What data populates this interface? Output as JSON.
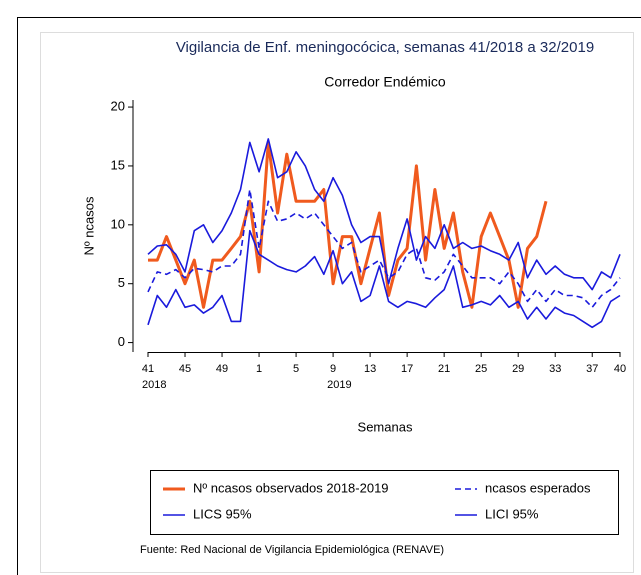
{
  "chart_data": {
    "type": "line",
    "title": "Vigilancia de Enf. meningocócica, semanas 41/2018 a 32/2019",
    "subtitle": "Corredor Endémico",
    "x_label": "Semanas",
    "y_label": "Nº ncasos",
    "source": "Fuente: Red Nacional de Vigilancia Epidemiológica (RENAVE)",
    "categories": [
      "41",
      null,
      null,
      null,
      "45",
      null,
      null,
      null,
      "49",
      null,
      null,
      null,
      "1",
      null,
      null,
      null,
      "5",
      null,
      null,
      null,
      "9",
      null,
      null,
      null,
      "13",
      null,
      null,
      null,
      "17",
      null,
      null,
      null,
      "21",
      null,
      null,
      null,
      "25",
      null,
      null,
      null,
      "29",
      null,
      null,
      null,
      "33",
      null,
      null,
      null,
      "37",
      null,
      null,
      "40"
    ],
    "year_labels": [
      {
        "index": 0,
        "text": "2018"
      },
      {
        "index": 20,
        "text": "2019"
      }
    ],
    "ylim": [
      -0.8,
      20.6
    ],
    "yticks": [
      0,
      5,
      10,
      15,
      20
    ],
    "series": [
      {
        "name": "Nº ncasos observados 2018-2019",
        "color": "#f05a1e",
        "style": "solid",
        "values": [
          7,
          7,
          9,
          7,
          5,
          7,
          3,
          7,
          7,
          8,
          9,
          12,
          6,
          17,
          11,
          16,
          12,
          12,
          12,
          13,
          5,
          9,
          9,
          5,
          8,
          11,
          4,
          7,
          8,
          15,
          7,
          13,
          8,
          11,
          6,
          3,
          9,
          11,
          9,
          7,
          3,
          8,
          9,
          12,
          null,
          null,
          null,
          null,
          null,
          null,
          null,
          null
        ]
      },
      {
        "name": "ncasos esperados",
        "color": "#1a1adc",
        "style": "dashed",
        "values": [
          4.3,
          6,
          5.8,
          6.2,
          5.5,
          6.3,
          6.2,
          6,
          6.5,
          6.5,
          7.5,
          13,
          8,
          12,
          10.3,
          10.5,
          11,
          10.5,
          11,
          10,
          9,
          8,
          8.5,
          6,
          6.5,
          7,
          5.5,
          6,
          7.5,
          8,
          5.5,
          5.3,
          6,
          7.5,
          6.5,
          5.5,
          5.5,
          5.5,
          5,
          6,
          5,
          3.5,
          4.5,
          3.5,
          4.5,
          4,
          4,
          3.8,
          3,
          4,
          4.5,
          5.5
        ]
      },
      {
        "name": "LICS 95%",
        "color": "#1a1adc",
        "style": "solid",
        "values": [
          7.5,
          8.2,
          8.3,
          7.5,
          6,
          9.5,
          10,
          8.5,
          9.5,
          11,
          13,
          17,
          14.5,
          17.3,
          14,
          14.5,
          16.2,
          15,
          13,
          12,
          14,
          12.5,
          10,
          8.5,
          9,
          9,
          5,
          8,
          10.5,
          7,
          9,
          8,
          10,
          8,
          8.5,
          8,
          8.2,
          7.8,
          7.5,
          7,
          8.5,
          5.5,
          7,
          5.8,
          6.5,
          5.8,
          5.5,
          5.5,
          4.5,
          6,
          5.5,
          7.5
        ]
      },
      {
        "name": "LICI 95%",
        "color": "#1a1adc",
        "style": "solid",
        "values": [
          1.5,
          4,
          3,
          4.5,
          3,
          3.2,
          2.5,
          3,
          4,
          1.8,
          1.8,
          9.5,
          7.5,
          7,
          6.5,
          6.2,
          6,
          6.5,
          7.3,
          5.8,
          7.8,
          5,
          6,
          3.5,
          4,
          6.5,
          3.5,
          3,
          3.5,
          3.3,
          3,
          3.8,
          4.5,
          6.5,
          3,
          3.2,
          3.5,
          3.2,
          4,
          3,
          3.5,
          2,
          3,
          2,
          3,
          2.5,
          2.3,
          1.8,
          1.3,
          1.8,
          3.5,
          4
        ]
      }
    ]
  }
}
